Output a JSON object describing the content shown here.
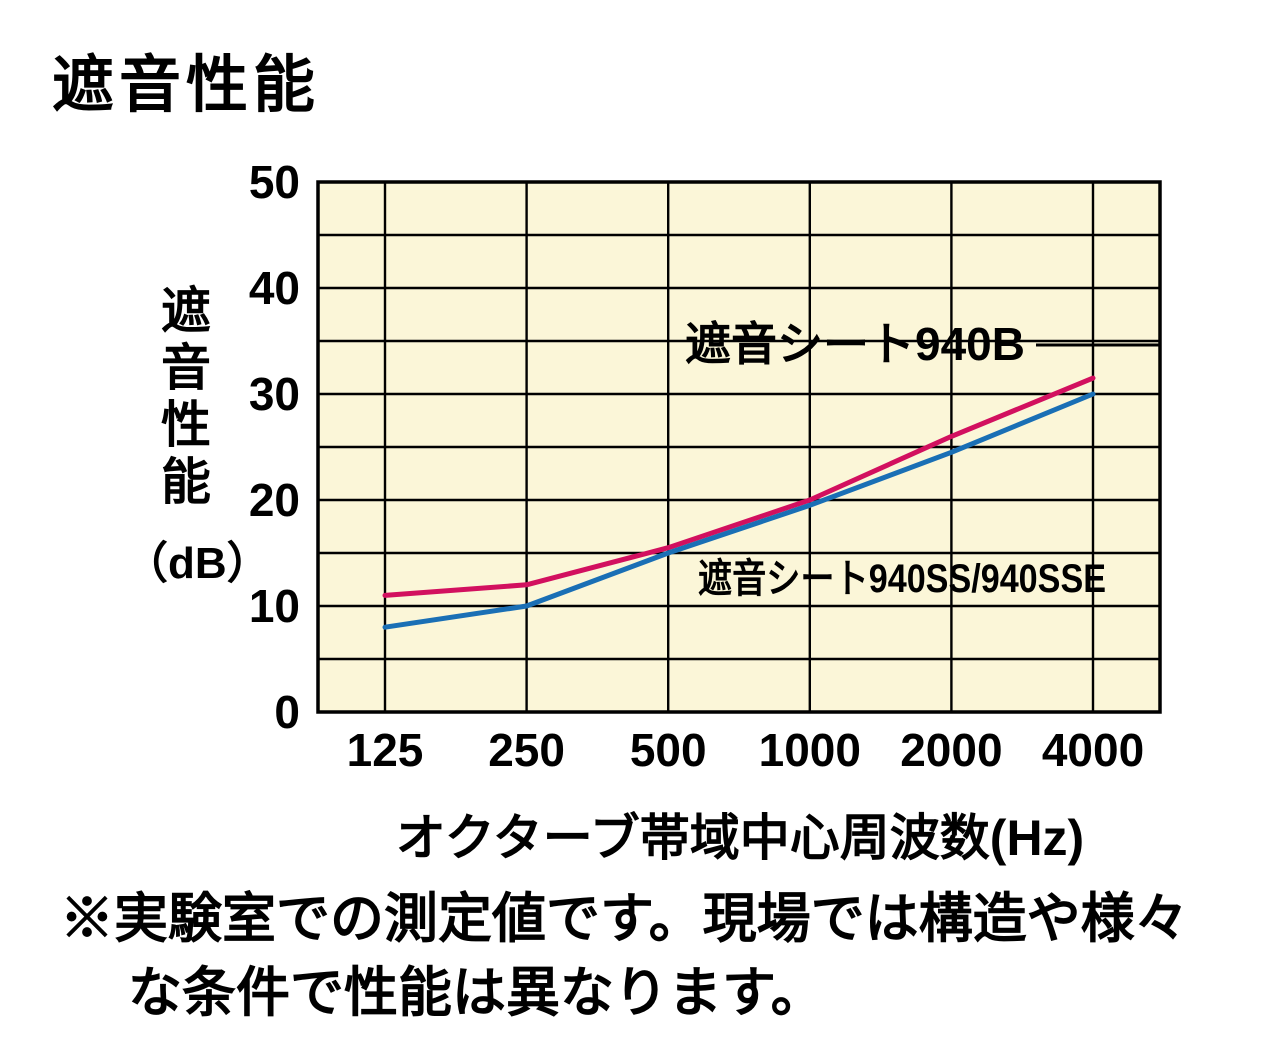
{
  "page": {
    "title": "遮音性能",
    "note_line1": "※実験室での測定値です。現場では構造や様々",
    "note_line2": "な条件で性能は異なります。"
  },
  "chart_data": {
    "type": "line",
    "title": "遮音性能",
    "xlabel": "オクターブ帯域中心周波数(Hz)",
    "ylabel": "遮音性能",
    "ylabel_unit": "（dB）",
    "categories": [
      "125",
      "250",
      "500",
      "1000",
      "2000",
      "4000"
    ],
    "yticks": [
      0,
      10,
      20,
      30,
      40,
      50
    ],
    "ylim": [
      0,
      50
    ],
    "x_axis_type": "octave-band (log, equal spacing)",
    "grid": "horizontal every 5 dB, vertical at each octave band",
    "plot_bg": "#fbf6d8",
    "grid_color": "#000000",
    "legend_position": "inline-annotations",
    "series": [
      {
        "name": "遮音シート940B",
        "color": "#d2105f",
        "values": [
          11,
          12,
          15.5,
          20,
          26,
          31.5
        ]
      },
      {
        "name": "遮音シート940SS/940SSE",
        "color": "#1a6fb5",
        "values": [
          8,
          10,
          15,
          19.5,
          24.5,
          30
        ]
      }
    ]
  }
}
